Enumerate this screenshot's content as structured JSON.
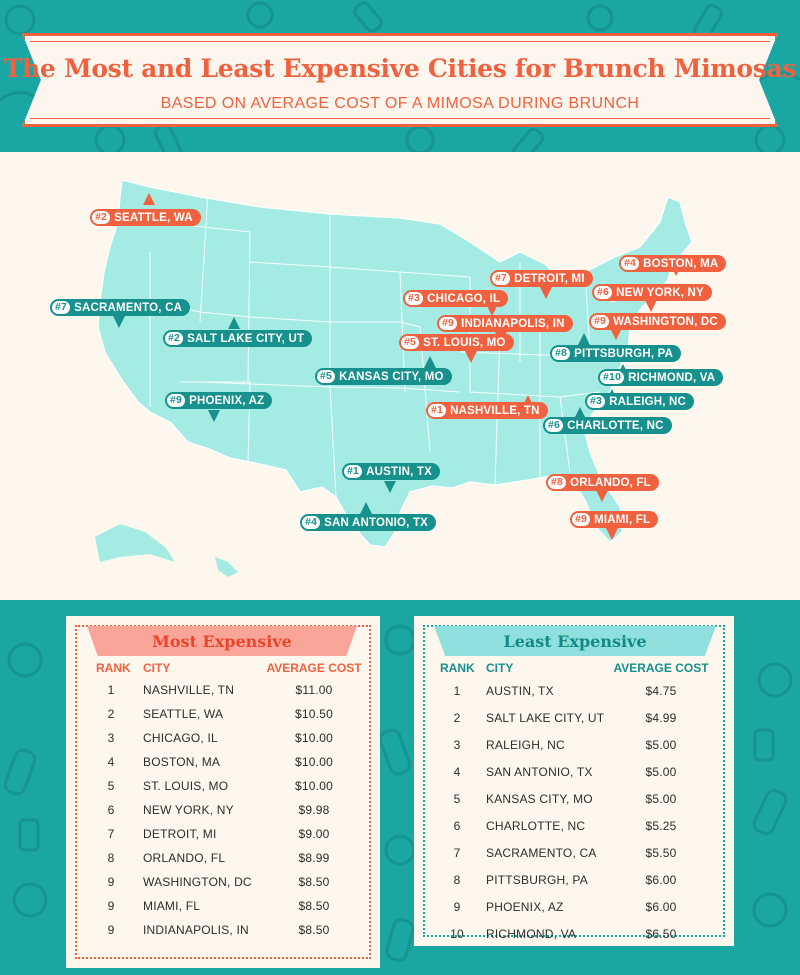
{
  "header": {
    "title": "The Most and Least Expensive Cities for Brunch Mimosas",
    "subtitle": "BASED ON AVERAGE COST OF A MIMOSA DURING BRUNCH"
  },
  "colors": {
    "orange": "#f0623f",
    "teal": "#16918e",
    "map_fill": "#a4ece3",
    "background": "#1aa6a3"
  },
  "map_labels": [
    {
      "rank": "#2",
      "city": "SEATTLE, WA",
      "color": "orange"
    },
    {
      "rank": "#4",
      "city": "BOSTON, MA",
      "color": "orange"
    },
    {
      "rank": "#7",
      "city": "DETROIT, MI",
      "color": "orange"
    },
    {
      "rank": "#6",
      "city": "NEW YORK, NY",
      "color": "orange"
    },
    {
      "rank": "#7",
      "city": "SACRAMENTO, CA",
      "color": "teal"
    },
    {
      "rank": "#3",
      "city": "CHICAGO, IL",
      "color": "orange"
    },
    {
      "rank": "#9",
      "city": "WASHINGTON, DC",
      "color": "orange"
    },
    {
      "rank": "#9",
      "city": "INDIANAPOLIS, IN",
      "color": "orange"
    },
    {
      "rank": "#2",
      "city": "SALT LAKE CITY, UT",
      "color": "teal"
    },
    {
      "rank": "#5",
      "city": "ST. LOUIS, MO",
      "color": "orange"
    },
    {
      "rank": "#8",
      "city": "PITTSBURGH, PA",
      "color": "teal"
    },
    {
      "rank": "#5",
      "city": "KANSAS CITY, MO",
      "color": "teal"
    },
    {
      "rank": "#10",
      "city": "RICHMOND, VA",
      "color": "teal"
    },
    {
      "rank": "#9",
      "city": "PHOENIX, AZ",
      "color": "teal"
    },
    {
      "rank": "#3",
      "city": "RALEIGH, NC",
      "color": "teal"
    },
    {
      "rank": "#1",
      "city": "NASHVILLE, TN",
      "color": "orange"
    },
    {
      "rank": "#6",
      "city": "CHARLOTTE, NC",
      "color": "teal"
    },
    {
      "rank": "#1",
      "city": "AUSTIN, TX",
      "color": "teal"
    },
    {
      "rank": "#8",
      "city": "ORLANDO, FL",
      "color": "orange"
    },
    {
      "rank": "#4",
      "city": "SAN ANTONIO, TX",
      "color": "teal"
    },
    {
      "rank": "#9",
      "city": "MIAMI, FL",
      "color": "orange"
    }
  ],
  "most_expensive": {
    "title": "Most Expensive",
    "headers": {
      "rank": "RANK",
      "city": "CITY",
      "cost": "AVERAGE COST"
    },
    "rows": [
      {
        "rank": "1",
        "city": "NASHVILLE, TN",
        "cost": "$11.00"
      },
      {
        "rank": "2",
        "city": "SEATTLE, WA",
        "cost": "$10.50"
      },
      {
        "rank": "3",
        "city": "CHICAGO, IL",
        "cost": "$10.00"
      },
      {
        "rank": "4",
        "city": "BOSTON, MA",
        "cost": "$10.00"
      },
      {
        "rank": "5",
        "city": "ST. LOUIS, MO",
        "cost": "$10.00"
      },
      {
        "rank": "6",
        "city": "NEW YORK, NY",
        "cost": "$9.98"
      },
      {
        "rank": "7",
        "city": "DETROIT, MI",
        "cost": "$9.00"
      },
      {
        "rank": "8",
        "city": "ORLANDO, FL",
        "cost": "$8.99"
      },
      {
        "rank": "9",
        "city": "WASHINGTON, DC",
        "cost": "$8.50"
      },
      {
        "rank": "9",
        "city": "MIAMI, FL",
        "cost": "$8.50"
      },
      {
        "rank": "9",
        "city": "INDIANAPOLIS, IN",
        "cost": "$8.50"
      }
    ]
  },
  "least_expensive": {
    "title": "Least Expensive",
    "headers": {
      "rank": "RANK",
      "city": "CITY",
      "cost": "AVERAGE COST"
    },
    "rows": [
      {
        "rank": "1",
        "city": "AUSTIN, TX",
        "cost": "$4.75"
      },
      {
        "rank": "2",
        "city": "SALT LAKE CITY, UT",
        "cost": "$4.99"
      },
      {
        "rank": "3",
        "city": "RALEIGH, NC",
        "cost": "$5.00"
      },
      {
        "rank": "4",
        "city": "SAN ANTONIO, TX",
        "cost": "$5.00"
      },
      {
        "rank": "5",
        "city": "KANSAS CITY, MO",
        "cost": "$5.00"
      },
      {
        "rank": "6",
        "city": "CHARLOTTE, NC",
        "cost": "$5.25"
      },
      {
        "rank": "7",
        "city": "SACRAMENTO, CA",
        "cost": "$5.50"
      },
      {
        "rank": "8",
        "city": "PITTSBURGH, PA",
        "cost": "$6.00"
      },
      {
        "rank": "9",
        "city": "PHOENIX, AZ",
        "cost": "$6.00"
      },
      {
        "rank": "10",
        "city": "RICHMOND, VA",
        "cost": "$6.50"
      }
    ]
  }
}
